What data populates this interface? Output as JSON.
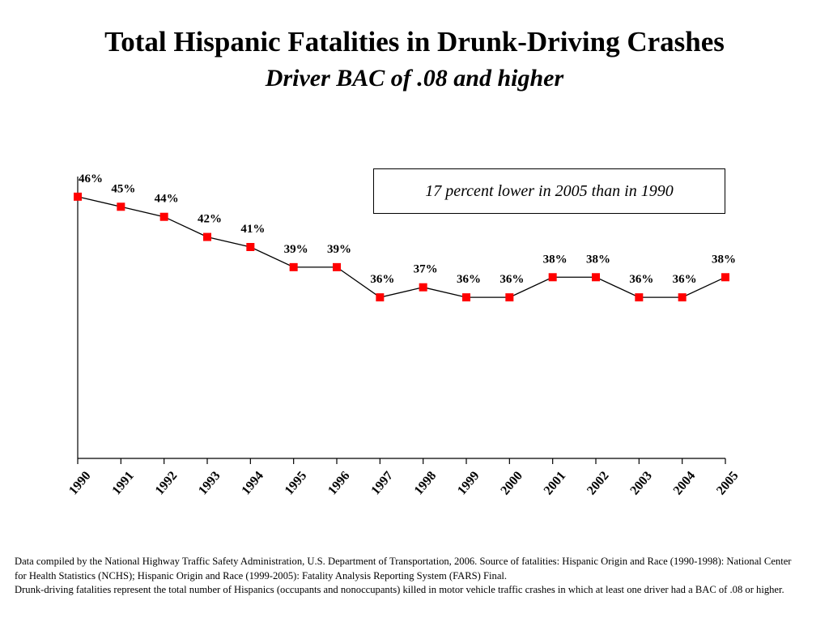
{
  "title": "Total Hispanic Fatalities in Drunk-Driving Crashes",
  "subtitle": "Driver BAC of .08 and higher",
  "annotation": "17 percent lower in 2005 than in 1990",
  "footnote": {
    "line1": "Data compiled by the National Highway Traffic Safety Administration, U.S. Department of Transportation, 2006.  Source of fatalities: Hispanic Origin and Race (1990-1998): National Center for Health Statistics (NCHS); Hispanic Origin and Race (1999-2005): Fatality Analysis Reporting System (FARS) Final.",
    "line2": "Drunk-driving fatalities represent the total number of Hispanics (occupants and nonoccupants) killed in motor vehicle traffic crashes in which at least one driver had a BAC of .08 or higher."
  },
  "chart_data": {
    "type": "line",
    "title": "Total Hispanic Fatalities in Drunk-Driving Crashes",
    "subtitle": "Driver BAC of .08 and higher",
    "categories": [
      "1990",
      "1991",
      "1992",
      "1993",
      "1994",
      "1995",
      "1996",
      "1997",
      "1998",
      "1999",
      "2000",
      "2001",
      "2002",
      "2003",
      "2004",
      "2005"
    ],
    "values": [
      46,
      45,
      44,
      42,
      41,
      39,
      39,
      36,
      37,
      36,
      36,
      38,
      38,
      36,
      36,
      38
    ],
    "labels": [
      "46%",
      "45%",
      "44%",
      "42%",
      "41%",
      "39%",
      "39%",
      "36%",
      "37%",
      "36%",
      "36%",
      "38%",
      "38%",
      "36%",
      "36%",
      "38%"
    ],
    "ylim": [
      20,
      48
    ],
    "y_axis_ticks_shown": false,
    "grid": false,
    "line_color": "#000000",
    "marker_color": "#ff0000",
    "marker_shape": "square"
  }
}
